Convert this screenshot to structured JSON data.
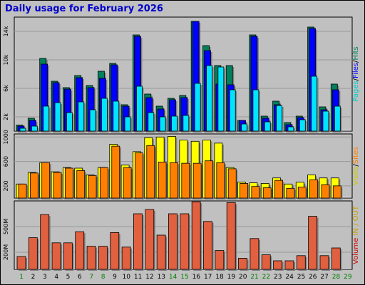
{
  "title": "Daily usage for February 2026",
  "colors": {
    "background": "#C0C0C0",
    "panel": "#C0C0C0",
    "hits": "#00805C",
    "files": "#0000FF",
    "pages": "#00E5FF",
    "visits": "#FFFF00",
    "sites": "#FF8000",
    "volume": "#E06040",
    "title": "#0000CC",
    "weekday_label": "#000000",
    "weekend_label": "#008000",
    "label_hits": "#00805C",
    "label_files": "#0000FF",
    "label_pages": "#00CCCC",
    "label_visits": "#C8C800",
    "label_sites": "#FF8000",
    "label_volume": "#CC0000",
    "label_in_out": "#C8A000"
  },
  "chart_data": [
    {
      "type": "bar",
      "panel": "hits-files-pages",
      "categories": [
        "1",
        "2",
        "3",
        "4",
        "5",
        "6",
        "7",
        "8",
        "9",
        "10",
        "11",
        "12",
        "13",
        "14",
        "15",
        "16",
        "17",
        "18",
        "19",
        "20",
        "21",
        "22",
        "23",
        "24",
        "25",
        "26",
        "27",
        "28",
        "29"
      ],
      "weekend_days": [
        "1",
        "7",
        "8",
        "14",
        "15",
        "21",
        "22",
        "28",
        "29"
      ],
      "ylim": [
        0,
        16000
      ],
      "yticks": [
        {
          "value": 2000,
          "label": "2k"
        },
        {
          "value": 6000,
          "label": "6k"
        },
        {
          "value": 10000,
          "label": "10k"
        },
        {
          "value": 14000,
          "label": "14k"
        }
      ],
      "series": [
        {
          "name": "Hits",
          "values": [
            850,
            1800,
            10200,
            7000,
            6100,
            7800,
            6400,
            8400,
            9500,
            3700,
            13500,
            5200,
            3500,
            4600,
            5000,
            15400,
            12000,
            9200,
            9200,
            1500,
            13500,
            2100,
            4200,
            1200,
            2100,
            14600,
            3400,
            6600,
            0
          ]
        },
        {
          "name": "Files",
          "values": [
            700,
            1500,
            9400,
            6800,
            5900,
            7500,
            6100,
            7400,
            9300,
            3500,
            13300,
            4700,
            3100,
            4400,
            4700,
            15400,
            11300,
            6600,
            6500,
            1500,
            13300,
            1800,
            3700,
            900,
            1900,
            14400,
            3000,
            5800,
            0
          ]
        },
        {
          "name": "Pages",
          "values": [
            400,
            700,
            3500,
            4000,
            2600,
            4100,
            3000,
            4600,
            4200,
            2000,
            6300,
            2600,
            2000,
            2100,
            2200,
            6700,
            9200,
            9000,
            5800,
            1000,
            5800,
            1300,
            3600,
            600,
            1600,
            7700,
            2800,
            3500,
            0
          ]
        }
      ],
      "legend": [
        "Pages",
        "Files",
        "Hits"
      ]
    },
    {
      "type": "bar",
      "panel": "visits-sites",
      "categories": [
        "1",
        "2",
        "3",
        "4",
        "5",
        "6",
        "7",
        "8",
        "9",
        "10",
        "11",
        "12",
        "13",
        "14",
        "15",
        "16",
        "17",
        "18",
        "19",
        "20",
        "21",
        "22",
        "23",
        "24",
        "25",
        "26",
        "27",
        "28",
        "29"
      ],
      "ylim": [
        0,
        1050
      ],
      "yticks": [
        {
          "value": 200,
          "label": "200"
        },
        {
          "value": 600,
          "label": "600"
        },
        {
          "value": 1000,
          "label": "1000"
        }
      ],
      "series": [
        {
          "name": "Visits",
          "values": [
            230,
            420,
            580,
            430,
            500,
            490,
            380,
            500,
            880,
            540,
            760,
            990,
            1000,
            1010,
            950,
            930,
            950,
            900,
            500,
            260,
            250,
            240,
            330,
            230,
            260,
            380,
            330,
            330,
            0
          ]
        },
        {
          "name": "Sites",
          "values": [
            230,
            410,
            580,
            420,
            490,
            450,
            370,
            500,
            850,
            500,
            740,
            860,
            590,
            580,
            570,
            570,
            610,
            580,
            480,
            240,
            190,
            170,
            290,
            160,
            180,
            300,
            220,
            200,
            0
          ]
        }
      ],
      "legend": [
        "Visits",
        "Sites"
      ]
    },
    {
      "type": "bar",
      "panel": "volume",
      "categories": [
        "1",
        "2",
        "3",
        "4",
        "5",
        "6",
        "7",
        "8",
        "9",
        "10",
        "11",
        "12",
        "13",
        "14",
        "15",
        "16",
        "17",
        "18",
        "19",
        "20",
        "21",
        "22",
        "23",
        "24",
        "25",
        "26",
        "27",
        "28",
        "29"
      ],
      "ylim": [
        0,
        800
      ],
      "yticks": [
        {
          "value": 200,
          "label": "200M"
        },
        {
          "value": 500,
          "label": "500M"
        }
      ],
      "series": [
        {
          "name": "Volume",
          "values": [
            150,
            370,
            640,
            310,
            310,
            440,
            270,
            270,
            430,
            260,
            650,
            700,
            400,
            650,
            650,
            790,
            560,
            220,
            780,
            130,
            360,
            170,
            100,
            100,
            160,
            620,
            160,
            250,
            0
          ]
        }
      ],
      "legend": [
        "Volume",
        "IN",
        "OUT"
      ]
    }
  ]
}
